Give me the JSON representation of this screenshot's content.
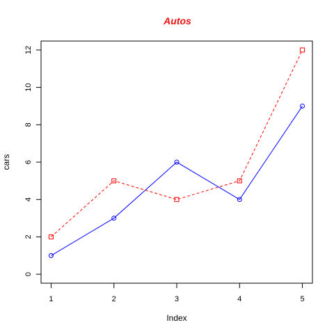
{
  "chart_data": {
    "type": "line",
    "title": "Autos",
    "title_color": "#ee1111",
    "xlabel": "Index",
    "ylabel": "cars",
    "x": [
      1,
      2,
      3,
      4,
      5
    ],
    "x_ticks": [
      "1",
      "2",
      "3",
      "4",
      "5"
    ],
    "y_ticks": [
      "0",
      "2",
      "4",
      "6",
      "8",
      "10",
      "12"
    ],
    "xlim": [
      0.84,
      5.16
    ],
    "ylim": [
      -0.48,
      12.48
    ],
    "grid": false,
    "series": [
      {
        "values": [
          1,
          3,
          6,
          4,
          9
        ],
        "color": "#0000ff",
        "line_style": "solid",
        "marker": "circle"
      },
      {
        "values": [
          2,
          5,
          4,
          5,
          12
        ],
        "color": "#ff0000",
        "line_style": "dashed",
        "marker": "square"
      }
    ]
  }
}
